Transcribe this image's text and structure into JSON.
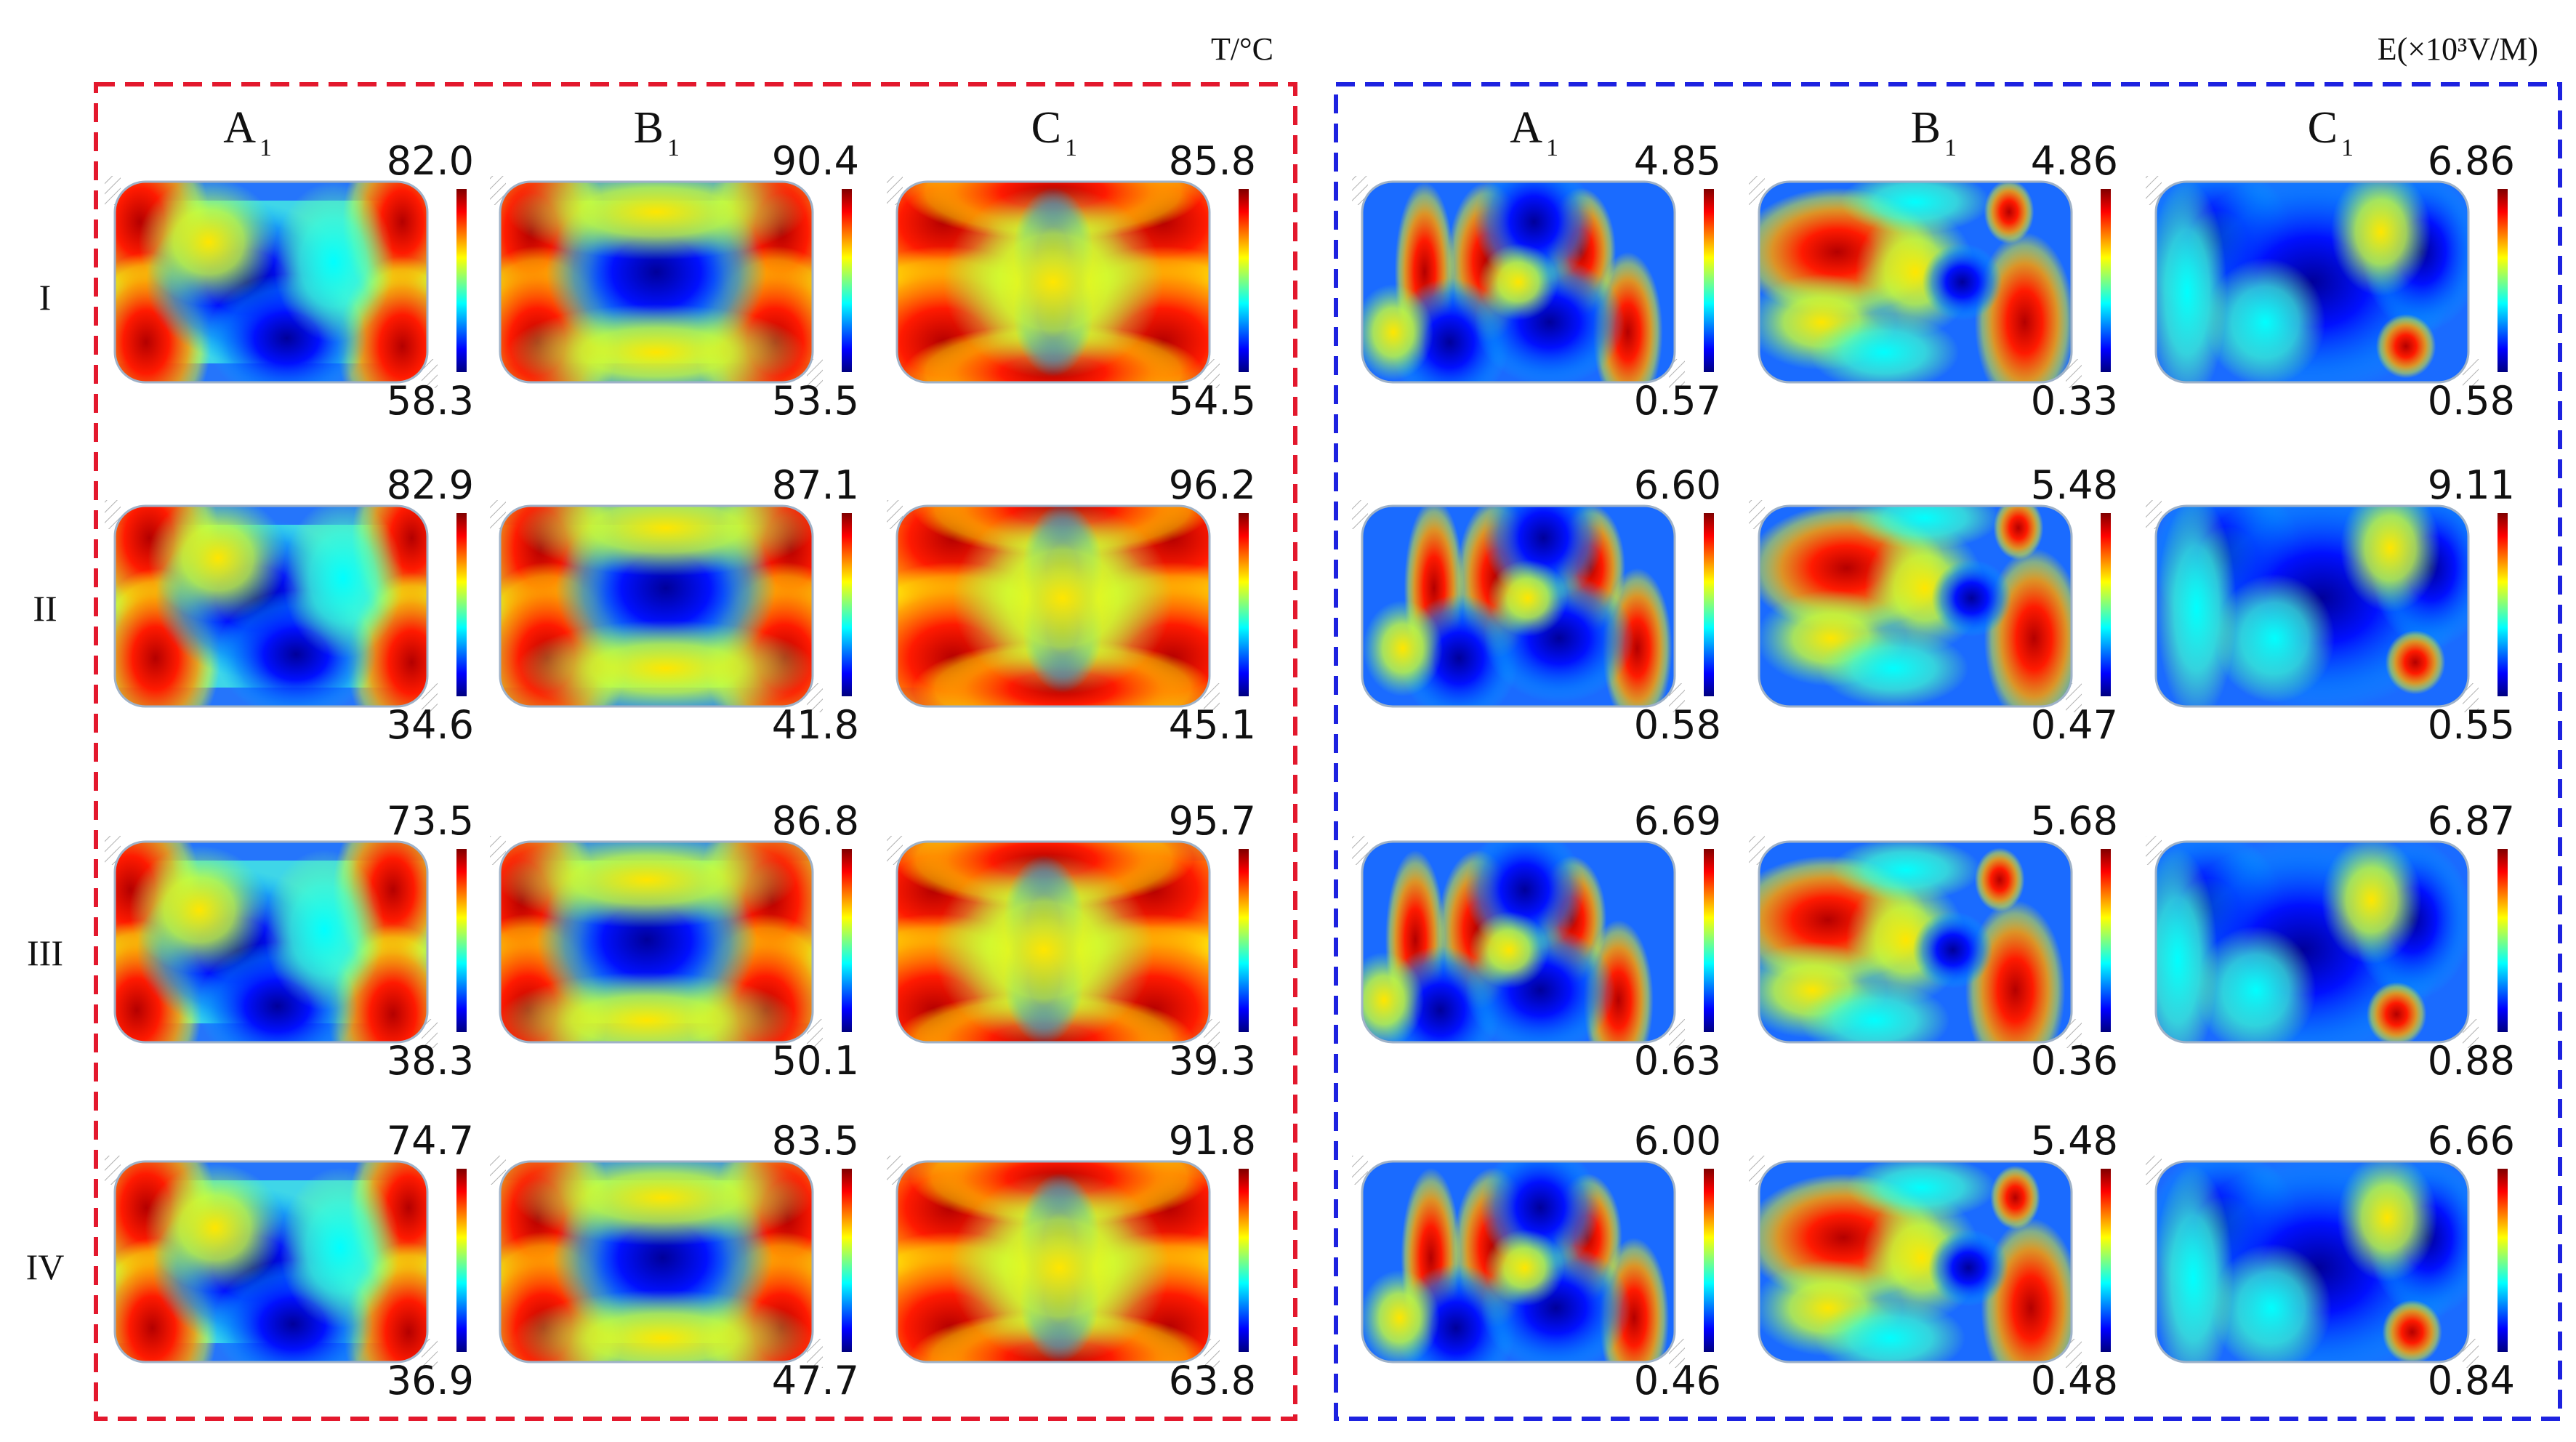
{
  "figure": {
    "temperature_panel": {
      "unit_label": "T/°C",
      "frame_color": "#e3182d",
      "columns": [
        {
          "letter": "A",
          "sub": "1"
        },
        {
          "letter": "B",
          "sub": "1"
        },
        {
          "letter": "C",
          "sub": "1"
        }
      ]
    },
    "field_panel": {
      "unit_label": "E(×10³V/M)",
      "frame_color": "#1d22e0",
      "columns": [
        {
          "letter": "A",
          "sub": "1"
        },
        {
          "letter": "B",
          "sub": "1"
        },
        {
          "letter": "C",
          "sub": "1"
        }
      ]
    },
    "rows": [
      "I",
      "II",
      "III",
      "IV"
    ],
    "colormap": [
      "#00007f",
      "#0000ff",
      "#007fff",
      "#00ffff",
      "#7fff7f",
      "#ffff00",
      "#ff7f00",
      "#ff0000",
      "#7f0000"
    ],
    "maps": [
      [
        {
          "max": "82.0",
          "min": "58.3"
        },
        {
          "max": "90.4",
          "min": "53.5"
        },
        {
          "max": "85.8",
          "min": "54.5"
        },
        {
          "max": "4.85",
          "min": "0.57"
        },
        {
          "max": "4.86",
          "min": "0.33"
        },
        {
          "max": "6.86",
          "min": "0.58"
        }
      ],
      [
        {
          "max": "82.9",
          "min": "34.6"
        },
        {
          "max": "87.1",
          "min": "41.8"
        },
        {
          "max": "96.2",
          "min": "45.1"
        },
        {
          "max": "6.60",
          "min": "0.58"
        },
        {
          "max": "5.48",
          "min": "0.47"
        },
        {
          "max": "9.11",
          "min": "0.55"
        }
      ],
      [
        {
          "max": "73.5",
          "min": "38.3"
        },
        {
          "max": "86.8",
          "min": "50.1"
        },
        {
          "max": "95.7",
          "min": "39.3"
        },
        {
          "max": "6.69",
          "min": "0.63"
        },
        {
          "max": "5.68",
          "min": "0.36"
        },
        {
          "max": "6.87",
          "min": "0.88"
        }
      ],
      [
        {
          "max": "74.7",
          "min": "36.9"
        },
        {
          "max": "83.5",
          "min": "47.7"
        },
        {
          "max": "91.8",
          "min": "63.8"
        },
        {
          "max": "6.00",
          "min": "0.46"
        },
        {
          "max": "5.48",
          "min": "0.48"
        },
        {
          "max": "6.66",
          "min": "0.84"
        }
      ]
    ]
  }
}
